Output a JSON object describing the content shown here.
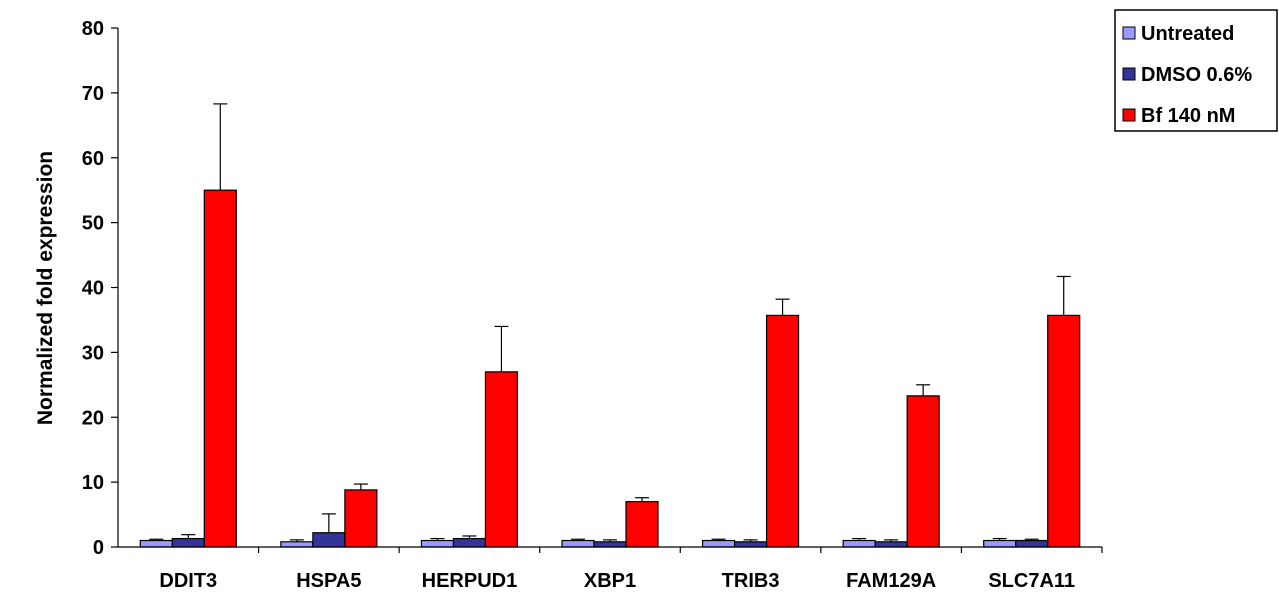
{
  "chart_data": {
    "type": "bar",
    "categories": [
      "DDIT3",
      "HSPA5",
      "HERPUD1",
      "XBP1",
      "TRIB3",
      "FAM129A",
      "SLC7A11"
    ],
    "series": [
      {
        "name": "Untreated",
        "color": "#9999ff",
        "values": [
          1.0,
          0.8,
          1.0,
          1.0,
          1.0,
          1.0,
          1.0
        ],
        "errors": [
          0.2,
          0.3,
          0.3,
          0.2,
          0.2,
          0.3,
          0.3
        ]
      },
      {
        "name": "DMSO 0.6%",
        "color": "#333399",
        "values": [
          1.3,
          2.2,
          1.3,
          0.8,
          0.8,
          0.8,
          1.0
        ],
        "errors": [
          0.6,
          2.9,
          0.4,
          0.3,
          0.3,
          0.3,
          0.2
        ]
      },
      {
        "name": "Bf 140 nM",
        "color": "#ff0000",
        "values": [
          55.0,
          8.8,
          27.0,
          7.0,
          35.7,
          23.3,
          35.7
        ],
        "errors": [
          13.3,
          0.9,
          7.0,
          0.6,
          2.5,
          1.7,
          6.0
        ]
      }
    ],
    "ylabel": "Normalized fold expression",
    "xlabel": "",
    "ylim": [
      0,
      80
    ],
    "yticks": [
      0,
      10,
      20,
      30,
      40,
      50,
      60,
      70,
      80
    ],
    "grid": false,
    "legend_position": "top-right",
    "error_bars": "upper"
  }
}
